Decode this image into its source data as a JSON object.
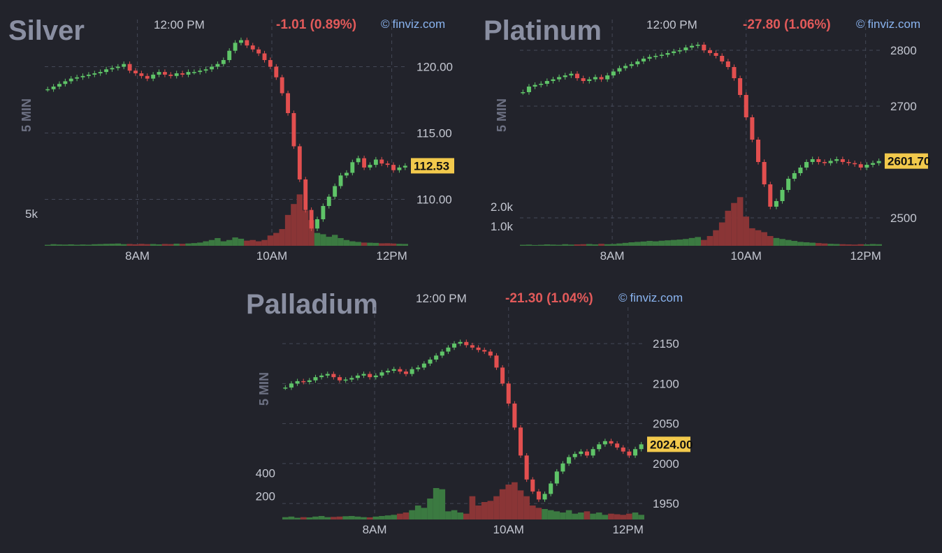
{
  "colors": {
    "up": "#5fc468",
    "down": "#e24f4f",
    "grid": "#444857",
    "axis": "#c4c7d1",
    "price_bg": "#f2c94c",
    "vol_up": "#3b7a41",
    "vol_down": "#8a3536"
  },
  "panels": [
    {
      "title": "Silver",
      "time": "12:00 PM",
      "change": "-1.01 (0.89%)",
      "credit": "finviz.com",
      "credit_icon": "©",
      "timeframe": "5 MIN",
      "price_label": "112.53"
    },
    {
      "title": "Platinum",
      "time": "12:00 PM",
      "change": "-27.80 (1.06%)",
      "credit": "finviz.com",
      "credit_icon": "©",
      "timeframe": "5 MIN",
      "price_label": "2601.70"
    },
    {
      "title": "Palladium",
      "time": "12:00 PM",
      "change": "-21.30 (1.04%)",
      "credit": "finviz.com",
      "credit_icon": "©",
      "timeframe": "5 MIN",
      "price_label": "2024.00"
    }
  ],
  "chart_data": [
    {
      "type": "candlestick",
      "title": "Silver",
      "x_ticks": [
        "8AM",
        "10AM",
        "12PM"
      ],
      "y_ticks": [
        "120.00",
        "115.00",
        "110.00"
      ],
      "y_tick_values": [
        120,
        115,
        110
      ],
      "ylim": [
        106.5,
        122.5
      ],
      "volume_ticks": [
        "5k"
      ],
      "volume_tick_values": [
        5000
      ],
      "volume_max": 10000,
      "last_price": 112.53,
      "closes": [
        118.3,
        118.5,
        118.7,
        118.9,
        119.1,
        119.2,
        119.3,
        119.4,
        119.5,
        119.6,
        119.8,
        119.9,
        120.0,
        120.2,
        119.7,
        119.5,
        119.3,
        119.1,
        119.4,
        119.6,
        119.4,
        119.3,
        119.5,
        119.4,
        119.6,
        119.6,
        119.7,
        119.8,
        120.0,
        120.2,
        120.5,
        121.2,
        121.8,
        122.0,
        121.6,
        121.3,
        121.0,
        120.5,
        120.0,
        119.2,
        118.0,
        116.5,
        114.0,
        111.5,
        109.2,
        107.8,
        108.5,
        109.5,
        110.2,
        111.0,
        111.8,
        112.0,
        112.8,
        113.1,
        112.4,
        112.6,
        113.0,
        112.7,
        112.6,
        112.2,
        112.4,
        112.53
      ],
      "volumes": [
        150,
        250,
        200,
        180,
        220,
        160,
        200,
        170,
        240,
        260,
        300,
        320,
        350,
        250,
        280,
        230,
        300,
        250,
        270,
        220,
        280,
        260,
        330,
        300,
        360,
        420,
        500,
        700,
        900,
        1200,
        700,
        900,
        1300,
        1100,
        800,
        900,
        700,
        900,
        1600,
        2000,
        2600,
        4800,
        6500,
        8000,
        5500,
        4000,
        2000,
        1800,
        1400,
        1700,
        1200,
        900,
        700,
        600,
        500,
        480,
        450,
        380,
        400,
        350,
        300,
        280
      ]
    },
    {
      "type": "candlestick",
      "title": "Platinum",
      "x_ticks": [
        "8AM",
        "10AM",
        "12PM"
      ],
      "y_ticks": [
        "2800",
        "2700",
        "2500"
      ],
      "y_tick_values": [
        2800,
        2700,
        2500
      ],
      "ylim": [
        2450,
        2830
      ],
      "volume_ticks": [
        "2.0k",
        "1.0k"
      ],
      "volume_tick_values": [
        2000,
        1000
      ],
      "volume_max": 3300,
      "last_price": 2601.7,
      "closes": [
        2725,
        2735,
        2738,
        2740,
        2745,
        2748,
        2752,
        2755,
        2758,
        2750,
        2745,
        2748,
        2752,
        2748,
        2755,
        2762,
        2768,
        2772,
        2775,
        2780,
        2785,
        2788,
        2790,
        2792,
        2795,
        2798,
        2800,
        2805,
        2808,
        2810,
        2800,
        2795,
        2790,
        2780,
        2770,
        2750,
        2720,
        2680,
        2640,
        2600,
        2560,
        2520,
        2530,
        2550,
        2570,
        2580,
        2590,
        2600,
        2605,
        2600,
        2598,
        2602,
        2605,
        2600,
        2598,
        2596,
        2590,
        2595,
        2598,
        2601.7
      ],
      "volumes": [
        50,
        60,
        40,
        50,
        70,
        60,
        50,
        80,
        60,
        70,
        80,
        90,
        70,
        100,
        80,
        90,
        120,
        150,
        180,
        200,
        220,
        250,
        230,
        260,
        280,
        300,
        320,
        350,
        400,
        450,
        300,
        500,
        800,
        1200,
        1800,
        2200,
        2500,
        1500,
        900,
        800,
        700,
        500,
        400,
        350,
        300,
        250,
        200,
        180,
        160,
        140,
        120,
        100,
        90,
        80,
        70,
        60,
        80,
        70,
        90,
        80
      ]
    },
    {
      "type": "candlestick",
      "title": "Palladium",
      "x_ticks": [
        "8AM",
        "10AM",
        "12PM"
      ],
      "y_ticks": [
        "2150",
        "2100",
        "2050",
        "2000",
        "1950"
      ],
      "y_tick_values": [
        2150,
        2100,
        2050,
        2000,
        1950
      ],
      "ylim": [
        1930,
        2178
      ],
      "volume_ticks": [
        "400",
        "200"
      ],
      "volume_tick_values": [
        400,
        200
      ],
      "volume_max": 480,
      "last_price": 2024.0,
      "closes": [
        2095,
        2100,
        2103,
        2102,
        2104,
        2108,
        2110,
        2112,
        2108,
        2104,
        2105,
        2107,
        2110,
        2112,
        2108,
        2110,
        2114,
        2116,
        2118,
        2115,
        2112,
        2118,
        2120,
        2125,
        2130,
        2135,
        2140,
        2145,
        2150,
        2152,
        2148,
        2145,
        2142,
        2140,
        2135,
        2120,
        2100,
        2075,
        2045,
        2010,
        1980,
        1965,
        1955,
        1962,
        1975,
        1990,
        2000,
        2008,
        2012,
        2015,
        2010,
        2018,
        2024,
        2028,
        2025,
        2020,
        2015,
        2010,
        2018,
        2024
      ],
      "volumes": [
        20,
        25,
        15,
        20,
        18,
        25,
        30,
        20,
        22,
        25,
        28,
        30,
        25,
        20,
        18,
        25,
        30,
        35,
        40,
        50,
        60,
        80,
        120,
        100,
        180,
        270,
        260,
        70,
        80,
        60,
        50,
        200,
        120,
        150,
        160,
        200,
        260,
        300,
        320,
        250,
        200,
        120,
        100,
        90,
        80,
        70,
        60,
        80,
        50,
        60,
        70,
        50,
        60,
        40,
        50,
        45,
        40,
        50,
        60,
        40
      ]
    }
  ]
}
